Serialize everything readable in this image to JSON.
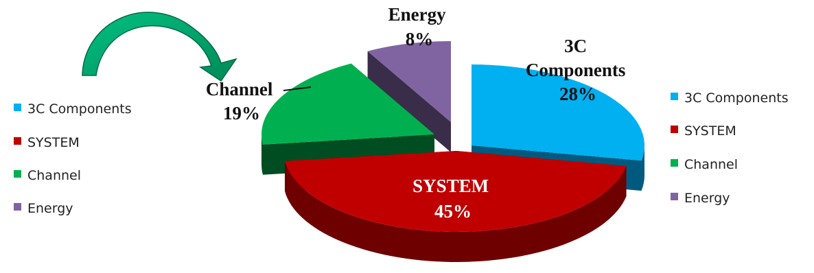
{
  "chart_data": {
    "type": "pie",
    "style": "3d-exploded",
    "slices": [
      {
        "id": "3c",
        "name": "3C Components",
        "value": 28,
        "label_lines": [
          "3C",
          "Components",
          "28%"
        ],
        "color": "#00b0f0",
        "side_color": "#005a80"
      },
      {
        "id": "system",
        "name": "SYSTEM",
        "value": 45,
        "label_lines": [
          "SYSTEM",
          "45%"
        ],
        "color": "#c00000",
        "side_color": "#6e0000"
      },
      {
        "id": "channel",
        "name": "Channel",
        "value": 19,
        "label_lines": [
          "Channel",
          "19%"
        ],
        "color": "#00b050",
        "side_color": "#004d22"
      },
      {
        "id": "energy",
        "name": "Energy",
        "value": 8,
        "label_lines": [
          "Energy",
          "8%"
        ],
        "color": "#8064a2",
        "side_color": "#3a2d4a"
      }
    ],
    "legends": [
      {
        "entries": [
          "3C Components",
          "SYSTEM",
          "Channel",
          "Energy"
        ]
      },
      {
        "entries": [
          "3C Components",
          "SYSTEM",
          "Channel",
          "Energy"
        ]
      }
    ]
  },
  "colors": {
    "arrow": "#00a86b",
    "arrow_dark": "#00704a",
    "label_text": "#111111",
    "system_label_text": "#ffffff"
  },
  "icons": {
    "curved_arrow": "curved-arrow-icon"
  }
}
